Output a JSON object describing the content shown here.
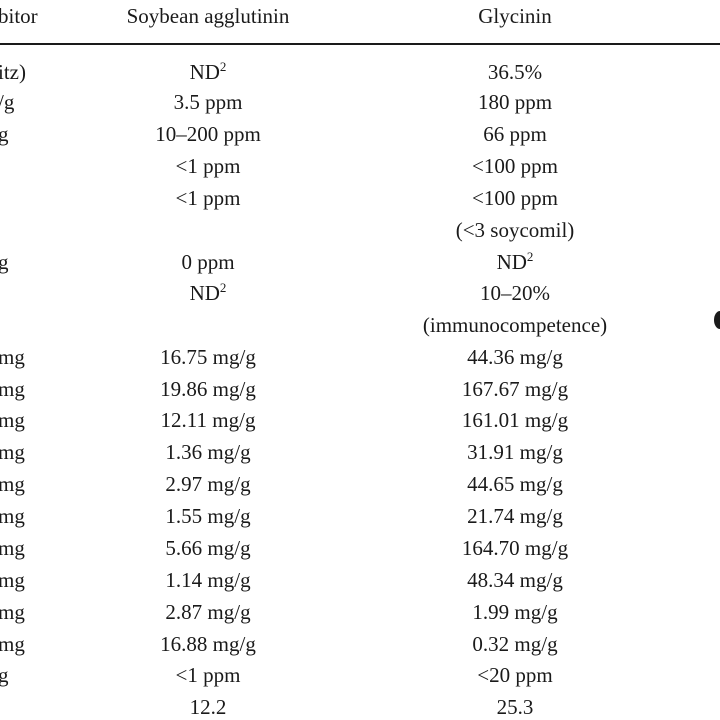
{
  "header": {
    "col0": "bitor",
    "col1": "Soybean agglutinin",
    "col2": "Glycinin"
  },
  "rows": [
    {
      "c0": "itz)",
      "c1": "ND",
      "c1_sup": "2",
      "c2": "36.5%",
      "c2_sup": ""
    },
    {
      "c0": "/g",
      "c1": "3.5 ppm",
      "c1_sup": "",
      "c2": "180 ppm",
      "c2_sup": ""
    },
    {
      "c0": "g",
      "c1": "10–200 ppm",
      "c1_sup": "",
      "c2": "66 ppm",
      "c2_sup": ""
    },
    {
      "c0": "",
      "c1": "<1 ppm",
      "c1_sup": "",
      "c2": "<100 ppm",
      "c2_sup": ""
    },
    {
      "c0": "",
      "c1": "<1 ppm",
      "c1_sup": "",
      "c2": "<100 ppm",
      "c2_sup": ""
    },
    {
      "c0": "",
      "c1": "",
      "c1_sup": "",
      "c2": "(<3 soycomil)",
      "c2_sup": ""
    },
    {
      "c0": "g",
      "c1": "0 ppm",
      "c1_sup": "",
      "c2": "ND",
      "c2_sup": "2"
    },
    {
      "c0": "",
      "c1": "ND",
      "c1_sup": "2",
      "c2": "10–20%",
      "c2_sup": ""
    },
    {
      "c0": "",
      "c1": "",
      "c1_sup": "",
      "c2": "(immunocompetence)",
      "c2_sup": ""
    },
    {
      "c0": "mg",
      "c1": "16.75 mg/g",
      "c1_sup": "",
      "c2": "44.36 mg/g",
      "c2_sup": ""
    },
    {
      "c0": "mg",
      "c1": "19.86 mg/g",
      "c1_sup": "",
      "c2": "167.67 mg/g",
      "c2_sup": ""
    },
    {
      "c0": "mg",
      "c1": "12.11 mg/g",
      "c1_sup": "",
      "c2": "161.01 mg/g",
      "c2_sup": ""
    },
    {
      "c0": "mg",
      "c1": "1.36 mg/g",
      "c1_sup": "",
      "c2": "31.91 mg/g",
      "c2_sup": ""
    },
    {
      "c0": "mg",
      "c1": "2.97 mg/g",
      "c1_sup": "",
      "c2": "44.65 mg/g",
      "c2_sup": ""
    },
    {
      "c0": "mg",
      "c1": "1.55 mg/g",
      "c1_sup": "",
      "c2": "21.74 mg/g",
      "c2_sup": ""
    },
    {
      "c0": "mg",
      "c1": "5.66 mg/g",
      "c1_sup": "",
      "c2": "164.70 mg/g",
      "c2_sup": ""
    },
    {
      "c0": "mg",
      "c1": "1.14 mg/g",
      "c1_sup": "",
      "c2": "48.34 mg/g",
      "c2_sup": ""
    },
    {
      "c0": "mg",
      "c1": "2.87 mg/g",
      "c1_sup": "",
      "c2": "1.99 mg/g",
      "c2_sup": ""
    },
    {
      "c0": "mg",
      "c1": "16.88 mg/g",
      "c1_sup": "",
      "c2": "0.32 mg/g",
      "c2_sup": ""
    },
    {
      "c0": "g",
      "c1": "<1 ppm",
      "c1_sup": "",
      "c2": "<20 ppm",
      "c2_sup": ""
    },
    {
      "c0": "",
      "c1": "12.2",
      "c1_sup": "",
      "c2": "25.3",
      "c2_sup": ""
    }
  ]
}
